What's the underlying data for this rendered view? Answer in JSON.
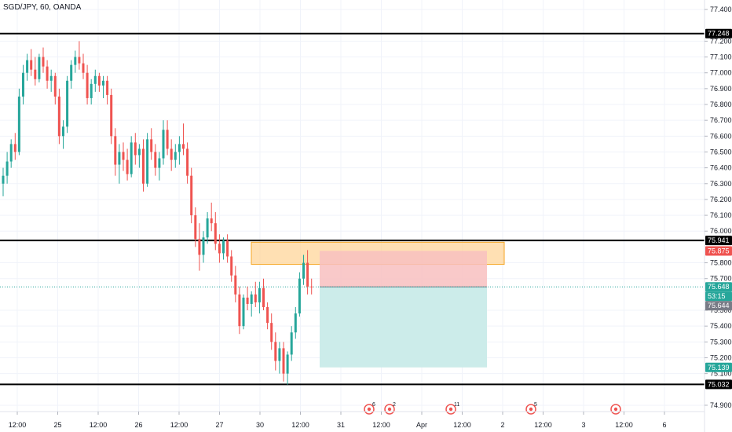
{
  "chart_data": {
    "type": "candlestick",
    "title": "SGD/JPY, 60, OANDA",
    "ylim": [
      74.86,
      77.46
    ],
    "y_ticks": [
      "77.400",
      "77.200",
      "77.100",
      "77.000",
      "76.900",
      "76.800",
      "76.700",
      "76.600",
      "76.500",
      "76.400",
      "76.300",
      "76.200",
      "76.100",
      "76.000",
      "75.800",
      "75.700",
      "75.500",
      "75.400",
      "75.300",
      "75.200",
      "75.100",
      "74.900"
    ],
    "x_ticks": [
      "12:00",
      "25",
      "12:00",
      "26",
      "12:00",
      "27",
      "30",
      "12:00",
      "31",
      "12:00",
      "Apr",
      "12:00",
      "2",
      "12:00",
      "3",
      "12:00",
      "6"
    ],
    "horizontal_levels": [
      {
        "value": "77.248",
        "color": "#000000"
      },
      {
        "value": "75.941",
        "color": "#000000"
      },
      {
        "value": "75.032",
        "color": "#000000"
      }
    ],
    "price_tags": [
      {
        "value": "75.875",
        "color": "#ef5350"
      },
      {
        "value": "75.648",
        "color": "#26a69a"
      },
      {
        "value": "53:15",
        "color": "#26a69a"
      },
      {
        "value": "75.644",
        "color": "#787b86"
      },
      {
        "value": "75.139",
        "color": "#26a69a"
      }
    ],
    "current_price": 75.648,
    "supply_zone": {
      "top": 75.93,
      "bottom": 75.79,
      "color": "#ffd699"
    },
    "short_position": {
      "entry": 75.648,
      "stop": 75.875,
      "target": 75.139,
      "stop_color": "#f8c0bf",
      "target_color": "#c9ebe9"
    },
    "colors": {
      "up": "#26a69a",
      "down": "#ef5350",
      "wick": "#787b86"
    },
    "events": [
      "6",
      "2",
      "11",
      "5",
      ""
    ],
    "candles": [
      [
        76.3,
        76.4,
        76.22,
        76.35
      ],
      [
        76.35,
        76.5,
        76.3,
        76.44
      ],
      [
        76.44,
        76.58,
        76.4,
        76.55
      ],
      [
        76.55,
        76.62,
        76.45,
        76.5
      ],
      [
        76.5,
        76.9,
        76.48,
        76.85
      ],
      [
        76.85,
        77.05,
        76.8,
        77.0
      ],
      [
        77.0,
        77.12,
        76.95,
        77.08
      ],
      [
        77.08,
        77.15,
        76.98,
        77.02
      ],
      [
        77.02,
        77.1,
        76.92,
        76.96
      ],
      [
        76.96,
        77.12,
        76.94,
        77.1
      ],
      [
        77.1,
        77.16,
        77.0,
        77.04
      ],
      [
        77.04,
        77.08,
        76.9,
        76.95
      ],
      [
        76.95,
        77.02,
        76.88,
        76.98
      ],
      [
        76.98,
        77.0,
        76.8,
        76.85
      ],
      [
        76.85,
        76.9,
        76.55,
        76.6
      ],
      [
        76.6,
        76.7,
        76.52,
        76.66
      ],
      [
        76.66,
        76.98,
        76.62,
        76.95
      ],
      [
        76.95,
        77.08,
        76.9,
        77.05
      ],
      [
        77.05,
        77.14,
        77.0,
        77.1
      ],
      [
        77.1,
        77.2,
        77.02,
        77.06
      ],
      [
        77.06,
        77.12,
        76.96,
        77.0
      ],
      [
        77.0,
        77.05,
        76.8,
        76.84
      ],
      [
        76.84,
        76.96,
        76.8,
        76.93
      ],
      [
        76.93,
        77.02,
        76.88,
        76.98
      ],
      [
        76.98,
        77.0,
        76.88,
        76.92
      ],
      [
        76.92,
        76.98,
        76.84,
        76.95
      ],
      [
        76.95,
        76.98,
        76.8,
        76.86
      ],
      [
        76.86,
        76.9,
        76.55,
        76.6
      ],
      [
        76.6,
        76.65,
        76.35,
        76.42
      ],
      [
        76.42,
        76.55,
        76.3,
        76.5
      ],
      [
        76.5,
        76.56,
        76.38,
        76.45
      ],
      [
        76.45,
        76.52,
        76.32,
        76.36
      ],
      [
        76.36,
        76.6,
        76.34,
        76.56
      ],
      [
        76.56,
        76.62,
        76.42,
        76.48
      ],
      [
        76.48,
        76.55,
        76.4,
        76.52
      ],
      [
        76.52,
        76.58,
        76.25,
        76.3
      ],
      [
        76.3,
        76.62,
        76.28,
        76.58
      ],
      [
        76.58,
        76.65,
        76.45,
        76.5
      ],
      [
        76.5,
        76.55,
        76.35,
        76.4
      ],
      [
        76.4,
        76.5,
        76.32,
        76.46
      ],
      [
        76.46,
        76.7,
        76.42,
        76.64
      ],
      [
        76.64,
        76.7,
        76.48,
        76.52
      ],
      [
        76.52,
        76.58,
        76.38,
        76.45
      ],
      [
        76.45,
        76.55,
        76.4,
        76.5
      ],
      [
        76.5,
        76.6,
        76.42,
        76.55
      ],
      [
        76.55,
        76.68,
        76.48,
        76.52
      ],
      [
        76.52,
        76.56,
        76.3,
        76.35
      ],
      [
        76.35,
        76.4,
        76.05,
        76.1
      ],
      [
        76.1,
        76.15,
        75.9,
        75.95
      ],
      [
        75.95,
        76.05,
        75.75,
        75.85
      ],
      [
        75.85,
        76.0,
        75.8,
        75.96
      ],
      [
        75.96,
        76.12,
        75.92,
        76.08
      ],
      [
        76.08,
        76.18,
        76.0,
        76.05
      ],
      [
        76.05,
        76.12,
        75.88,
        75.92
      ],
      [
        75.92,
        75.98,
        75.8,
        75.86
      ],
      [
        75.86,
        75.96,
        75.82,
        75.94
      ],
      [
        75.94,
        75.98,
        75.8,
        75.84
      ],
      [
        75.84,
        75.88,
        75.68,
        75.72
      ],
      [
        75.72,
        75.78,
        75.55,
        75.6
      ],
      [
        75.6,
        75.65,
        75.35,
        75.4
      ],
      [
        75.4,
        75.6,
        75.38,
        75.58
      ],
      [
        75.58,
        75.65,
        75.5,
        75.54
      ],
      [
        75.54,
        75.62,
        75.46,
        75.6
      ],
      [
        75.6,
        75.68,
        75.52,
        75.55
      ],
      [
        75.55,
        75.68,
        75.48,
        75.64
      ],
      [
        75.64,
        75.7,
        75.5,
        75.52
      ],
      [
        75.52,
        75.55,
        75.38,
        75.42
      ],
      [
        75.42,
        75.48,
        75.25,
        75.3
      ],
      [
        75.3,
        75.36,
        75.12,
        75.18
      ],
      [
        75.18,
        75.3,
        75.1,
        75.26
      ],
      [
        75.26,
        75.3,
        75.05,
        75.1
      ],
      [
        75.1,
        75.24,
        75.03,
        75.22
      ],
      [
        75.22,
        75.4,
        75.18,
        75.36
      ],
      [
        75.36,
        75.52,
        75.32,
        75.48
      ],
      [
        75.48,
        75.74,
        75.46,
        75.7
      ],
      [
        75.7,
        75.85,
        75.66,
        75.8
      ],
      [
        75.8,
        75.88,
        75.6,
        75.65
      ],
      [
        75.65,
        75.7,
        75.6,
        75.648
      ]
    ]
  }
}
